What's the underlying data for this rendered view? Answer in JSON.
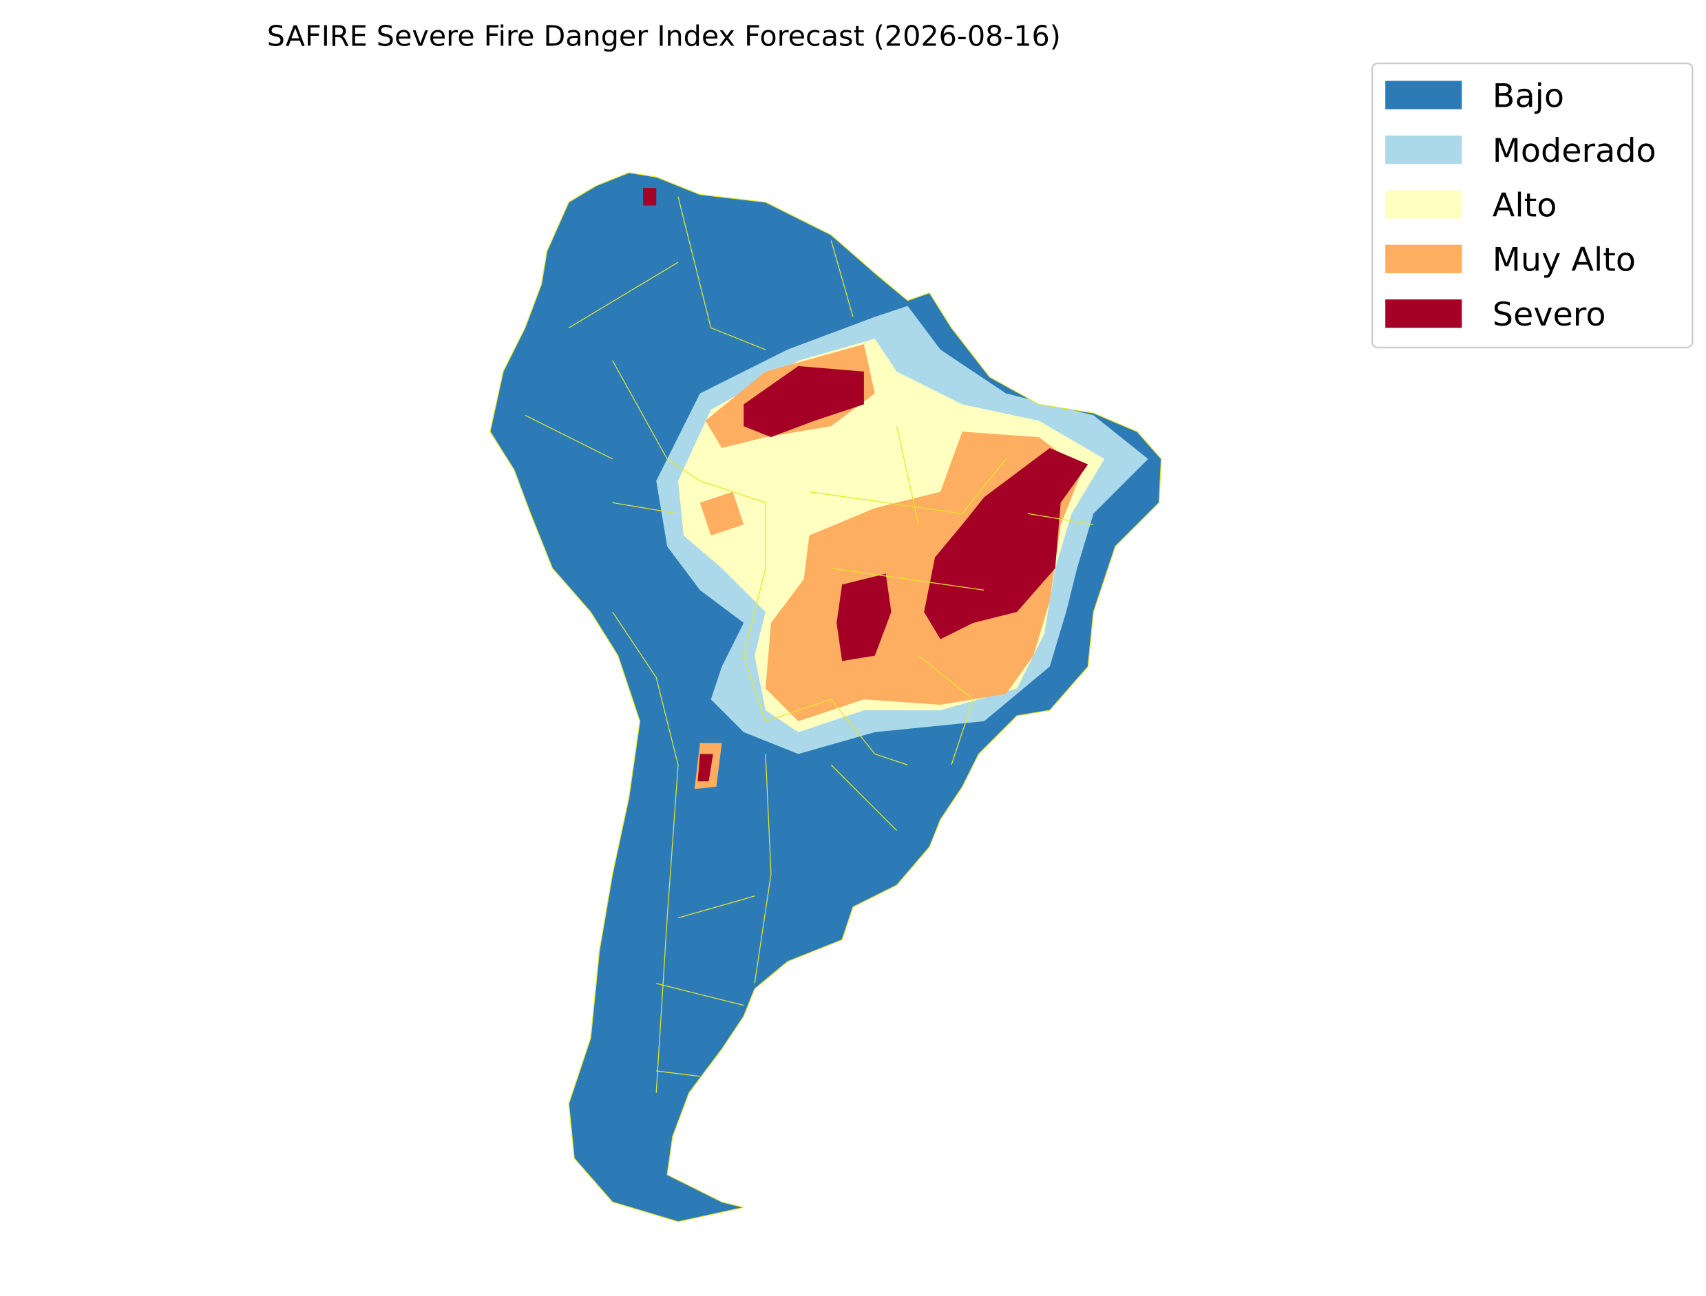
{
  "title": "SAFIRE Severe Fire Danger Index Forecast (2026-08-16)",
  "legend": {
    "items": [
      {
        "label": "Bajo",
        "color": "#2c7bb6"
      },
      {
        "label": "Moderado",
        "color": "#abd9e9"
      },
      {
        "label": "Alto",
        "color": "#ffffbf"
      },
      {
        "label": "Muy Alto",
        "color": "#fdae61"
      },
      {
        "label": "Severo",
        "color": "#a50026"
      }
    ]
  }
}
